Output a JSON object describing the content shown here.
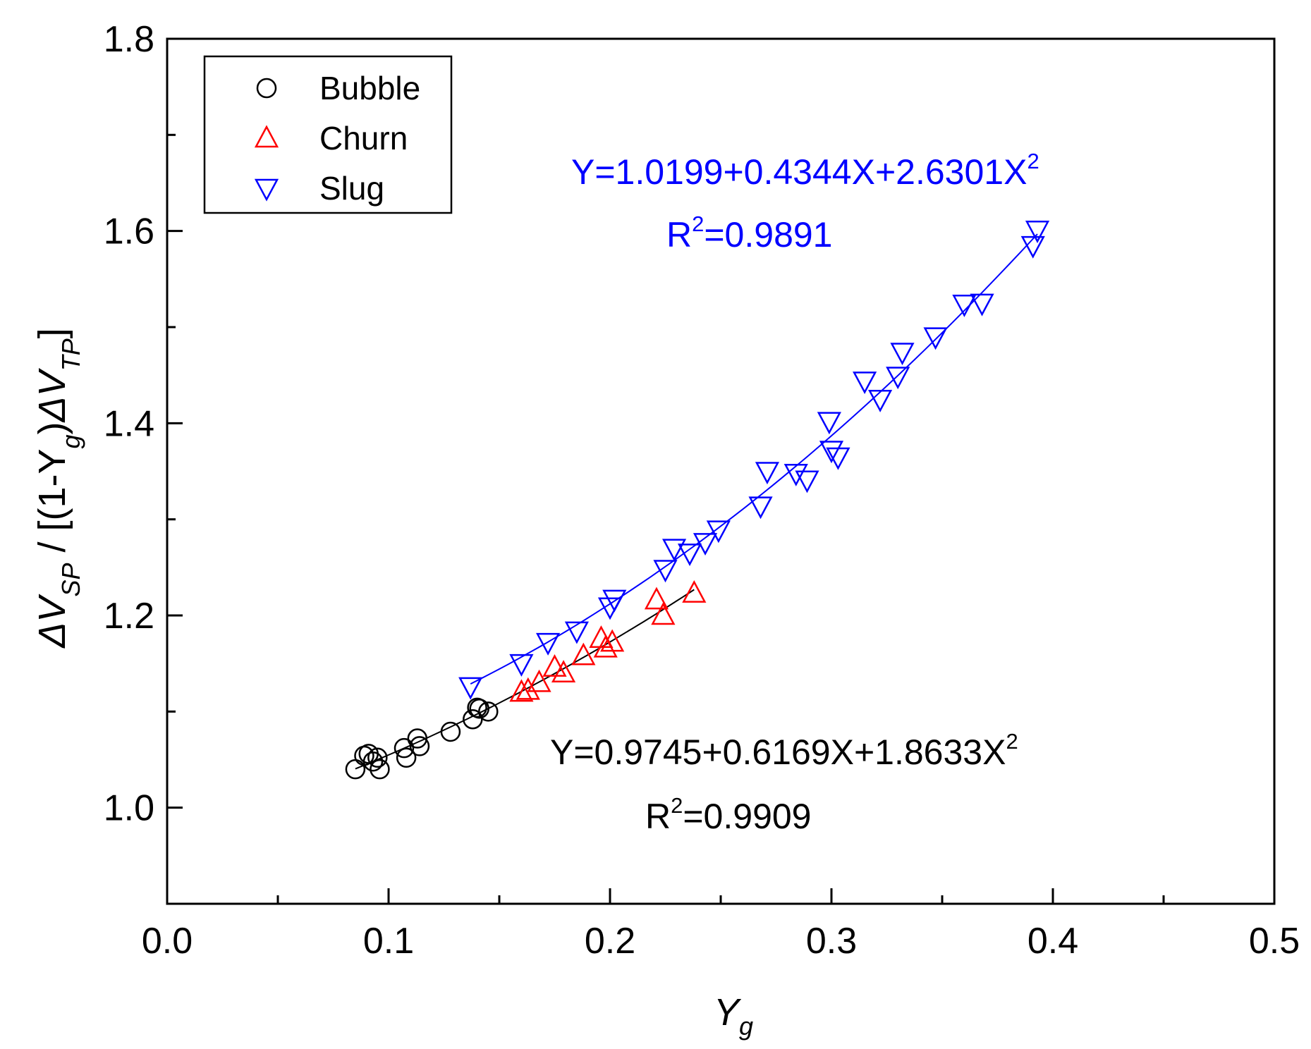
{
  "chart_data": {
    "type": "scatter",
    "title": "",
    "xlabel": {
      "main": "Y",
      "sub": "g"
    },
    "ylabel": {
      "parts": [
        {
          "t": "ΔV",
          "style": "italic"
        },
        {
          "t": "SP",
          "style": "italic-sub"
        },
        {
          "t": " / [(1-Y",
          "style": "normal"
        },
        {
          "t": "g",
          "style": "italic-sub"
        },
        {
          "t": ")",
          "style": "normal"
        },
        {
          "t": "ΔV",
          "style": "italic"
        },
        {
          "t": "TP",
          "style": "italic-sub"
        },
        {
          "t": "]",
          "style": "normal"
        }
      ]
    },
    "xlim": [
      0.0,
      0.5
    ],
    "ylim": [
      0.9,
      1.8
    ],
    "xticks": [
      0.0,
      0.1,
      0.2,
      0.3,
      0.4,
      0.5
    ],
    "xtick_labels": [
      "0.0",
      "0.1",
      "0.2",
      "0.3",
      "0.4",
      "0.5"
    ],
    "xminor": [
      0.05,
      0.15,
      0.25,
      0.35,
      0.45
    ],
    "yticks": [
      1.0,
      1.2,
      1.4,
      1.6,
      1.8
    ],
    "ytick_labels": [
      "1.0",
      "1.2",
      "1.4",
      "1.6",
      "1.8"
    ],
    "yminor": [
      0.9,
      1.1,
      1.3,
      1.5,
      1.7
    ],
    "legend": {
      "position": "top-left",
      "entries": [
        {
          "label": "Bubble",
          "marker": "circle",
          "color": "#000000"
        },
        {
          "label": "Churn",
          "marker": "triangle-up",
          "color": "#ff0000"
        },
        {
          "label": "Slug",
          "marker": "triangle-down",
          "color": "#0000ff"
        }
      ]
    },
    "series": [
      {
        "name": "Bubble",
        "marker": "circle",
        "color": "#000000",
        "points": [
          [
            0.085,
            1.04
          ],
          [
            0.089,
            1.054
          ],
          [
            0.091,
            1.056
          ],
          [
            0.093,
            1.048
          ],
          [
            0.095,
            1.052
          ],
          [
            0.096,
            1.04
          ],
          [
            0.107,
            1.062
          ],
          [
            0.108,
            1.052
          ],
          [
            0.113,
            1.072
          ],
          [
            0.114,
            1.064
          ],
          [
            0.128,
            1.079
          ],
          [
            0.138,
            1.092
          ],
          [
            0.14,
            1.104
          ],
          [
            0.141,
            1.103
          ],
          [
            0.145,
            1.1
          ]
        ]
      },
      {
        "name": "Churn",
        "marker": "triangle-up",
        "color": "#ff0000",
        "points": [
          [
            0.16,
            1.12
          ],
          [
            0.163,
            1.122
          ],
          [
            0.168,
            1.13
          ],
          [
            0.175,
            1.146
          ],
          [
            0.179,
            1.14
          ],
          [
            0.188,
            1.158
          ],
          [
            0.196,
            1.176
          ],
          [
            0.198,
            1.166
          ],
          [
            0.201,
            1.172
          ],
          [
            0.221,
            1.216
          ],
          [
            0.224,
            1.2
          ],
          [
            0.238,
            1.223
          ]
        ]
      },
      {
        "name": "Slug",
        "marker": "triangle-down",
        "color": "#0000ff",
        "points": [
          [
            0.137,
            1.126
          ],
          [
            0.16,
            1.15
          ],
          [
            0.172,
            1.172
          ],
          [
            0.185,
            1.184
          ],
          [
            0.2,
            1.209
          ],
          [
            0.202,
            1.217
          ],
          [
            0.225,
            1.248
          ],
          [
            0.229,
            1.27
          ],
          [
            0.236,
            1.265
          ],
          [
            0.243,
            1.276
          ],
          [
            0.249,
            1.289
          ],
          [
            0.268,
            1.314
          ],
          [
            0.271,
            1.35
          ],
          [
            0.284,
            1.348
          ],
          [
            0.289,
            1.341
          ],
          [
            0.299,
            1.402
          ],
          [
            0.3,
            1.372
          ],
          [
            0.303,
            1.365
          ],
          [
            0.315,
            1.444
          ],
          [
            0.322,
            1.425
          ],
          [
            0.33,
            1.449
          ],
          [
            0.332,
            1.474
          ],
          [
            0.347,
            1.49
          ],
          [
            0.36,
            1.524
          ],
          [
            0.368,
            1.525
          ],
          [
            0.391,
            1.585
          ],
          [
            0.393,
            1.601
          ]
        ]
      }
    ],
    "fits": [
      {
        "name": "Bubble+Churn fit",
        "color": "#000000",
        "a": 0.9745,
        "b": 0.6169,
        "c": 1.8633,
        "xrange": [
          0.085,
          0.238
        ],
        "equation": {
          "main": "Y=0.9745+0.6169X+1.8633X",
          "sup": "2"
        },
        "r2": {
          "pre": "R",
          "sup": "2",
          "post": "=0.9909"
        }
      },
      {
        "name": "Slug fit",
        "color": "#0000ff",
        "a": 1.0199,
        "b": 0.4344,
        "c": 2.6301,
        "xrange": [
          0.137,
          0.393
        ],
        "equation": {
          "main": "Y=1.0199+0.4344X+2.6301X",
          "sup": "2"
        },
        "r2": {
          "pre": "R",
          "sup": "2",
          "post": "=0.9891"
        }
      }
    ]
  }
}
